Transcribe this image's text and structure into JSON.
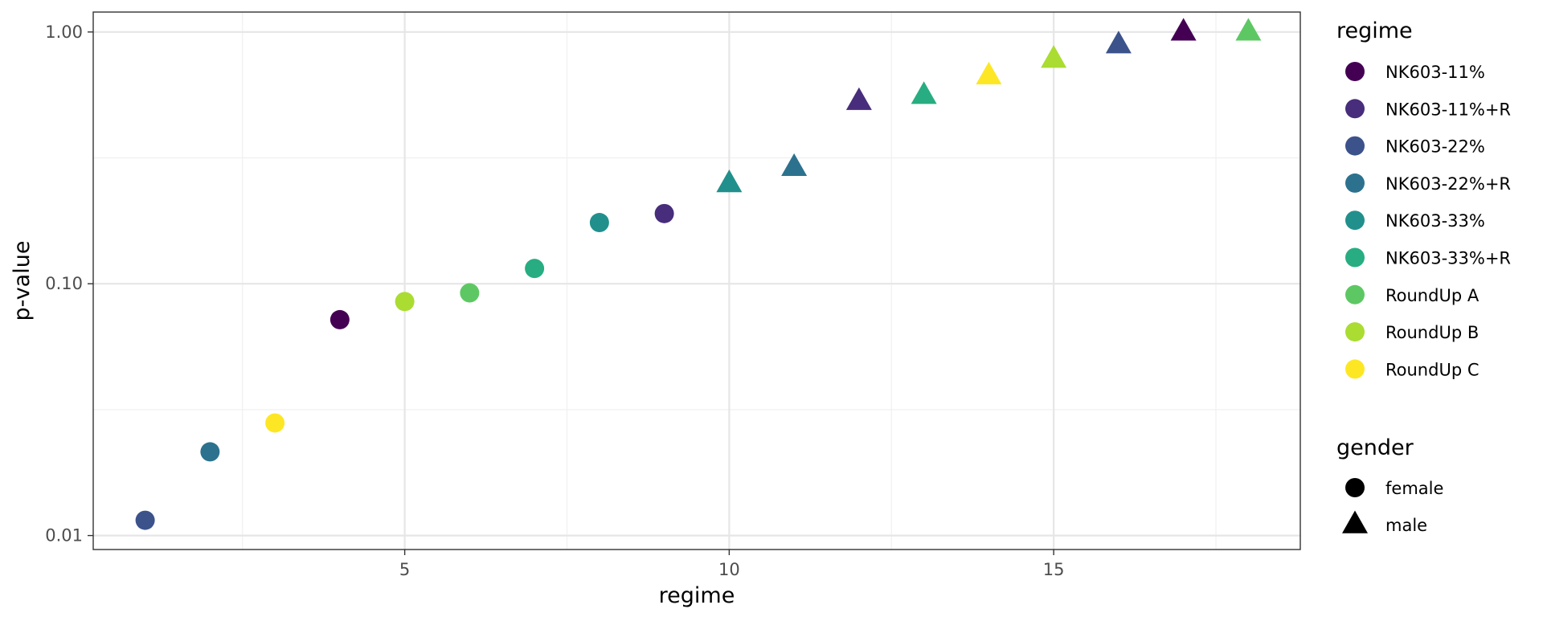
{
  "chart_data": {
    "type": "scatter",
    "xlabel": "regime",
    "ylabel": "p-value",
    "xlim": [
      0.2,
      18.8
    ],
    "ylim": [
      0.0088,
      1.2
    ],
    "y_scale": "log10",
    "grid": true,
    "x_ticks": [
      5,
      10,
      15
    ],
    "x_tick_labels": [
      "5",
      "10",
      "15"
    ],
    "y_ticks": [
      0.01,
      0.1,
      1
    ],
    "y_tick_labels": [
      "0.01",
      "0.10",
      "1.00"
    ],
    "legend_placement": "right",
    "legend_regime": {
      "title": "regime",
      "entries": [
        {
          "label": "NK603-11%",
          "color": "#440154"
        },
        {
          "label": "NK603-11%+R",
          "color": "#472D7B"
        },
        {
          "label": "NK603-22%",
          "color": "#3B528B"
        },
        {
          "label": "NK603-22%+R",
          "color": "#2C728E"
        },
        {
          "label": "NK603-33%",
          "color": "#21908C"
        },
        {
          "label": "NK603-33%+R",
          "color": "#27AD81"
        },
        {
          "label": "RoundUp A",
          "color": "#5DC863"
        },
        {
          "label": "RoundUp B",
          "color": "#AADC32"
        },
        {
          "label": "RoundUp C",
          "color": "#FDE725"
        }
      ]
    },
    "legend_gender": {
      "title": "gender",
      "entries": [
        {
          "label": "female",
          "shape": "circle"
        },
        {
          "label": "male",
          "shape": "triangle"
        }
      ]
    },
    "points": [
      {
        "x": 1,
        "y": 0.0115,
        "regime": "NK603-22%",
        "gender": "female"
      },
      {
        "x": 2,
        "y": 0.0215,
        "regime": "NK603-22%+R",
        "gender": "female"
      },
      {
        "x": 3,
        "y": 0.028,
        "regime": "RoundUp C",
        "gender": "female"
      },
      {
        "x": 4,
        "y": 0.072,
        "regime": "NK603-11%",
        "gender": "female"
      },
      {
        "x": 5,
        "y": 0.085,
        "regime": "RoundUp B",
        "gender": "female"
      },
      {
        "x": 6,
        "y": 0.092,
        "regime": "RoundUp A",
        "gender": "female"
      },
      {
        "x": 7,
        "y": 0.115,
        "regime": "NK603-33%+R",
        "gender": "female"
      },
      {
        "x": 8,
        "y": 0.175,
        "regime": "NK603-33%",
        "gender": "female"
      },
      {
        "x": 9,
        "y": 0.19,
        "regime": "NK603-11%+R",
        "gender": "female"
      },
      {
        "x": 10,
        "y": 0.25,
        "regime": "NK603-33%",
        "gender": "male"
      },
      {
        "x": 11,
        "y": 0.29,
        "regime": "NK603-22%+R",
        "gender": "male"
      },
      {
        "x": 12,
        "y": 0.53,
        "regime": "NK603-11%+R",
        "gender": "male"
      },
      {
        "x": 13,
        "y": 0.56,
        "regime": "NK603-33%+R",
        "gender": "male"
      },
      {
        "x": 14,
        "y": 0.67,
        "regime": "RoundUp C",
        "gender": "male"
      },
      {
        "x": 15,
        "y": 0.78,
        "regime": "RoundUp B",
        "gender": "male"
      },
      {
        "x": 16,
        "y": 0.89,
        "regime": "NK603-22%",
        "gender": "male"
      },
      {
        "x": 17,
        "y": 1.0,
        "regime": "NK603-11%",
        "gender": "male"
      },
      {
        "x": 18,
        "y": 1.0,
        "regime": "RoundUp A",
        "gender": "male"
      }
    ]
  }
}
